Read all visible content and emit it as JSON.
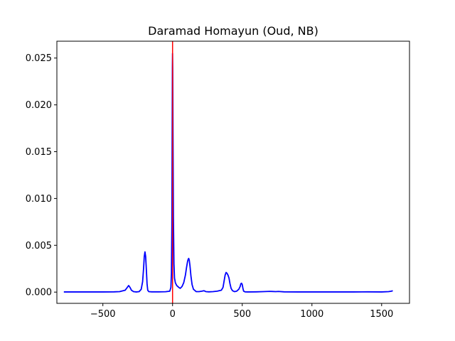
{
  "chart_data": {
    "type": "line",
    "title": "Daramad Homayun (Oud, NB)",
    "xlabel": "",
    "ylabel": "",
    "xlim": [
      -830,
      1700
    ],
    "ylim": [
      -0.0012,
      0.0268
    ],
    "xticks": [
      -500,
      0,
      500,
      1000,
      1500
    ],
    "xtick_labels": [
      "−500",
      "0",
      "500",
      "1000",
      "1500"
    ],
    "yticks": [
      0.0,
      0.005,
      0.01,
      0.015,
      0.02,
      0.025
    ],
    "ytick_labels": [
      "0.000",
      "0.005",
      "0.010",
      "0.015",
      "0.020",
      "0.025"
    ],
    "grid": false,
    "series": [
      {
        "color": "#0000ff",
        "x": [
          -780,
          -700,
          -600,
          -500,
          -420,
          -380,
          -340,
          -325,
          -315,
          -305,
          -295,
          -280,
          -260,
          -240,
          -225,
          -215,
          -208,
          -203,
          -198,
          -193,
          -188,
          -183,
          -178,
          -170,
          -150,
          -100,
          -50,
          -20,
          -12,
          -8,
          -5,
          -3,
          -1,
          0,
          1,
          3,
          6,
          10,
          14,
          20,
          30,
          45,
          55,
          68,
          80,
          92,
          100,
          108,
          112,
          116,
          120,
          125,
          132,
          140,
          150,
          170,
          190,
          210,
          225,
          240,
          260,
          290,
          320,
          350,
          362,
          370,
          377,
          384,
          391,
          398,
          405,
          412,
          420,
          430,
          445,
          460,
          475,
          485,
          490,
          495,
          500,
          505,
          510,
          520,
          540,
          600,
          650,
          700,
          740,
          760,
          800,
          900,
          1000,
          1100,
          1200,
          1300,
          1400,
          1500,
          1550,
          1570,
          1580
        ],
        "y": [
          2e-05,
          2e-05,
          2e-05,
          2e-05,
          3e-05,
          5e-05,
          0.0002,
          0.0005,
          0.0007,
          0.0005,
          0.0002,
          5e-05,
          2e-05,
          5e-05,
          0.0003,
          0.0011,
          0.0025,
          0.0038,
          0.0043,
          0.0038,
          0.0024,
          0.0009,
          0.0002,
          5e-05,
          3e-05,
          3e-05,
          4e-05,
          0.0001,
          0.0005,
          0.002,
          0.007,
          0.016,
          0.024,
          0.0255,
          0.024,
          0.017,
          0.008,
          0.003,
          0.0015,
          0.001,
          0.0007,
          0.0005,
          0.0004,
          0.0006,
          0.001,
          0.0018,
          0.0026,
          0.0033,
          0.0035,
          0.0036,
          0.0034,
          0.0028,
          0.0017,
          0.0008,
          0.0003,
          5e-05,
          5e-05,
          0.0001,
          0.00015,
          5e-05,
          3e-05,
          5e-05,
          0.0001,
          0.0002,
          0.0005,
          0.0012,
          0.0018,
          0.0021,
          0.002,
          0.0018,
          0.0015,
          0.0009,
          0.0004,
          0.00015,
          5e-05,
          0.0001,
          0.0003,
          0.0006,
          0.0009,
          0.00095,
          0.0008,
          0.0004,
          0.0001,
          3e-05,
          2e-05,
          3e-05,
          5e-05,
          8e-05,
          5e-05,
          7e-05,
          3e-05,
          2e-05,
          2e-05,
          2e-05,
          2e-05,
          2e-05,
          3e-05,
          2e-05,
          5e-05,
          0.0001,
          0.00015
        ]
      }
    ],
    "vlines": [
      {
        "x": 0,
        "color": "#ff0000"
      }
    ]
  }
}
